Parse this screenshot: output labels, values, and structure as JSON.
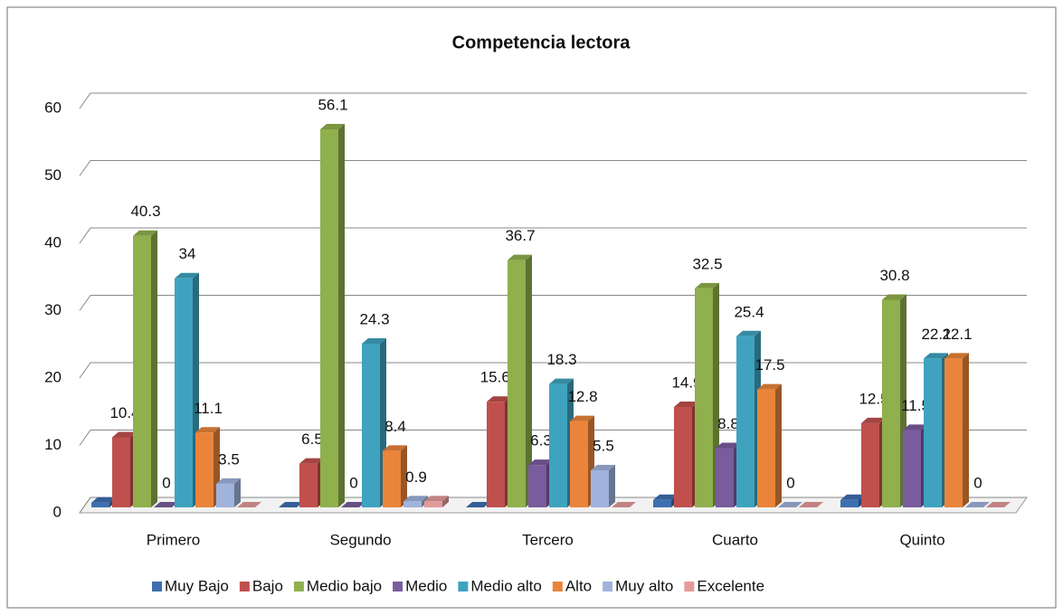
{
  "chart_data": {
    "type": "bar3d",
    "title": "Competencia lectora",
    "categories": [
      "Primero",
      "Segundo",
      "Tercero",
      "Cuarto",
      "Quinto"
    ],
    "ylim": [
      0,
      60
    ],
    "yticks": [
      0,
      10,
      20,
      30,
      40,
      50,
      60
    ],
    "grid": true,
    "legend": "bottom",
    "series": [
      {
        "name": "Muy Bajo",
        "color": "#3d6fb0",
        "values": [
          0.7,
          0,
          0,
          1.1,
          1.1
        ],
        "data_labels": false
      },
      {
        "name": "Bajo",
        "color": "#c0504d",
        "values": [
          10.4,
          6.5,
          15.67,
          14.9,
          12.5
        ],
        "data_labels": true
      },
      {
        "name": "Medio bajo",
        "color": "#8fb04d",
        "values": [
          40.3,
          56.1,
          36.7,
          32.5,
          30.8
        ],
        "data_labels": true
      },
      {
        "name": "Medio",
        "color": "#7a5c9e",
        "values": [
          0,
          0,
          6.3,
          8.8,
          11.5
        ],
        "data_labels": true
      },
      {
        "name": "Medio alto",
        "color": "#3fa3bf",
        "values": [
          34,
          24.3,
          18.3,
          25.4,
          22.1
        ],
        "data_labels": true
      },
      {
        "name": "Alto",
        "color": "#ea843a",
        "values": [
          11.1,
          8.4,
          12.8,
          17.5,
          22.1
        ],
        "data_labels": true
      },
      {
        "name": "Muy alto",
        "color": "#9fb3dc",
        "values": [
          3.5,
          0.9,
          5.5,
          0,
          0
        ],
        "data_labels": true
      },
      {
        "name": "Excelente",
        "color": "#e39b9a",
        "values": [
          0,
          0.9,
          0,
          0,
          0
        ],
        "data_labels": false
      }
    ]
  }
}
